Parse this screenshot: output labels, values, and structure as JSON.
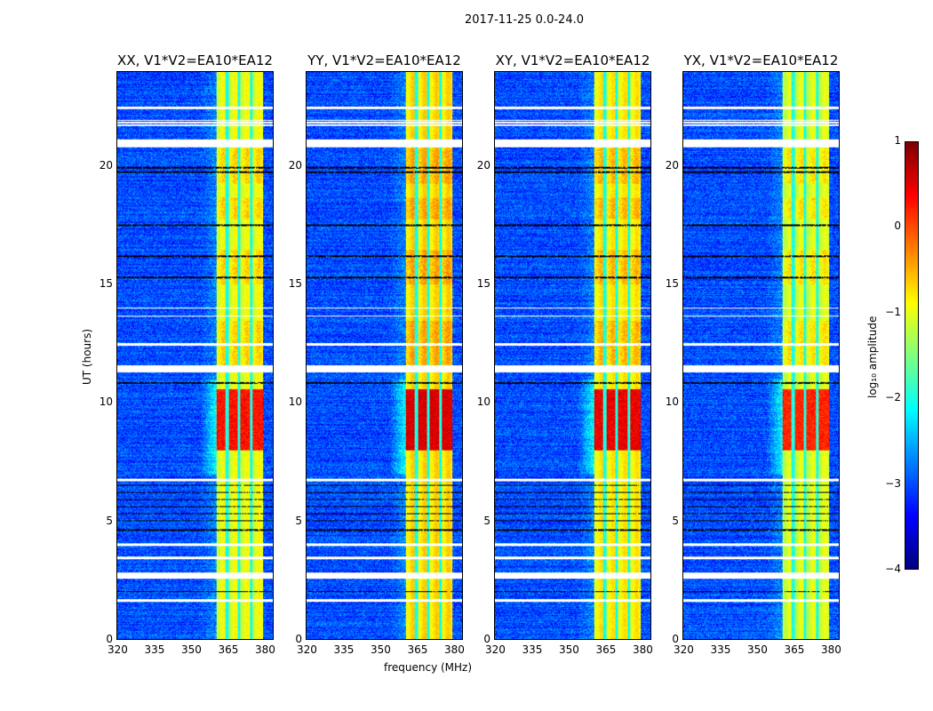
{
  "chart_data": {
    "type": "heatmap",
    "title": "2017-11-25 0.0-24.0",
    "xlabel": "frequency (MHz)",
    "ylabel": "UT (hours)",
    "xlim": [
      320,
      384
    ],
    "ylim": [
      0,
      24
    ],
    "xticks": [
      "320",
      "335",
      "350",
      "365",
      "380"
    ],
    "xtick_values": [
      320,
      335,
      350,
      365,
      380
    ],
    "yticks": [
      "0",
      "5",
      "10",
      "15",
      "20"
    ],
    "ytick_values": [
      0,
      5,
      10,
      15,
      20
    ],
    "panels": [
      {
        "title": "XX, V1*V2=EA10*EA12",
        "boost": 0
      },
      {
        "title": "YY, V1*V2=EA10*EA12",
        "boost": 0.25
      },
      {
        "title": "XY, V1*V2=EA10*EA12",
        "boost": 0.15
      },
      {
        "title": "YX, V1*V2=EA10*EA12",
        "boost": -0.1
      }
    ],
    "band_mhz": [
      360.5,
      380
    ],
    "band_dark_channels_mhz": [
      365,
      370,
      375
    ],
    "background_log_amp": -3,
    "band_log_amp": -1,
    "hot_interval_hours": [
      8,
      10.6
    ],
    "hot_log_amp": 0.3,
    "gaps_white_hours": [
      [
        22.45,
        22.55
      ],
      [
        21.75,
        21.8
      ],
      [
        21.85,
        21.9
      ],
      [
        21.95,
        22.0
      ],
      [
        20.85,
        21.15
      ],
      [
        14.0,
        14.05
      ],
      [
        13.65,
        13.7
      ],
      [
        12.45,
        12.55
      ],
      [
        11.3,
        11.6
      ],
      [
        6.7,
        6.8
      ],
      [
        3.95,
        4.05
      ],
      [
        3.4,
        3.5
      ],
      [
        2.55,
        2.85
      ],
      [
        1.6,
        1.7
      ]
    ],
    "flagged_black_hours": [
      [
        19.75,
        19.8
      ],
      [
        19.95,
        20.0
      ],
      [
        17.5,
        17.55
      ],
      [
        16.2,
        16.25
      ],
      [
        15.3,
        15.35
      ],
      [
        10.8,
        10.9
      ],
      [
        6.5,
        6.55
      ],
      [
        6.2,
        6.25
      ],
      [
        5.9,
        5.95
      ],
      [
        5.6,
        5.65
      ],
      [
        5.3,
        5.35
      ],
      [
        5.0,
        5.05
      ],
      [
        4.6,
        4.65
      ],
      [
        2.0,
        2.05
      ]
    ],
    "colorbar": {
      "label": "log₁₀ amplitude",
      "range": [
        -4,
        1
      ],
      "ticks": [
        "1",
        "0",
        "−1",
        "−2",
        "−3",
        "−4"
      ],
      "tick_values": [
        1,
        0,
        -1,
        -2,
        -3,
        -4
      ],
      "colormap": "jet"
    }
  }
}
